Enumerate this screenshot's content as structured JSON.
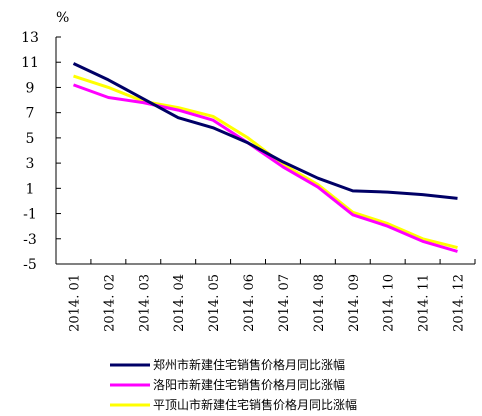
{
  "chart_data": {
    "type": "line",
    "ylabel": "%",
    "ylim": [
      -5,
      13
    ],
    "yticks": [
      13,
      11,
      9,
      7,
      5,
      3,
      1,
      -1,
      -3,
      -5
    ],
    "categories": [
      "2014.01",
      "2014.02",
      "2014.03",
      "2014.04",
      "2014.05",
      "2014.06",
      "2014.07",
      "2014.08",
      "2014.09",
      "2014.10",
      "2014.11",
      "2014.12"
    ],
    "grid": false,
    "legend_position": "bottom",
    "series": [
      {
        "name": "郑州市新建住宅销售价格月同比涨幅",
        "color": "#000066",
        "values": [
          10.9,
          9.6,
          8.1,
          6.6,
          5.8,
          4.6,
          3.1,
          1.8,
          0.8,
          0.7,
          0.5,
          0.2
        ]
      },
      {
        "name": "洛阳市新建住宅销售价格月同比涨幅",
        "color": "#ff00ff",
        "values": [
          9.2,
          8.2,
          7.8,
          7.2,
          6.4,
          4.6,
          2.7,
          1.1,
          -1.1,
          -2.0,
          -3.2,
          -4.0
        ]
      },
      {
        "name": "平顶山市新建住宅销售价格月同比涨幅",
        "color": "#ffff00",
        "values": [
          9.9,
          9.0,
          7.9,
          7.4,
          6.7,
          5.0,
          2.9,
          1.3,
          -0.9,
          -1.8,
          -3.0,
          -3.7
        ]
      }
    ]
  }
}
